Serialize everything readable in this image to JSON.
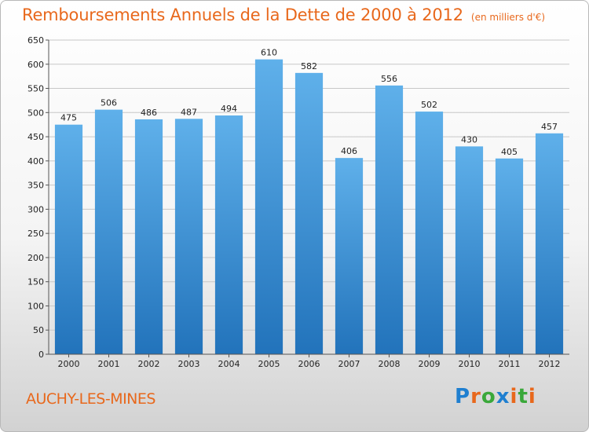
{
  "header": {
    "title": "Remboursements Annuels de la Dette de 2000 à 2012",
    "subtitle": "(en milliers d'€)"
  },
  "footer": {
    "commune": "AUCHY-LES-MINES",
    "logo_letters": [
      "P",
      "r",
      "o",
      "x",
      "i",
      "t",
      "i"
    ],
    "logo_colors": [
      "#1f7fd0",
      "#e8681c",
      "#3aa83a",
      "#1f7fd0",
      "#e8681c",
      "#3aa83a",
      "#e8681c"
    ]
  },
  "chart_data": {
    "type": "bar",
    "title": "Remboursements Annuels de la Dette de 2000 à 2012",
    "subtitle": "(en milliers d'€)",
    "xlabel": "",
    "ylabel": "",
    "categories": [
      "2000",
      "2001",
      "2002",
      "2003",
      "2004",
      "2005",
      "2006",
      "2007",
      "2008",
      "2009",
      "2010",
      "2011",
      "2012"
    ],
    "values": [
      475,
      506,
      486,
      487,
      494,
      610,
      582,
      406,
      556,
      502,
      430,
      405,
      457
    ],
    "ylim": [
      0,
      650
    ],
    "yticks": [
      0,
      50,
      100,
      150,
      200,
      250,
      300,
      350,
      400,
      450,
      500,
      550,
      600,
      650
    ],
    "grid": true,
    "legend": "none",
    "colors": {
      "bar_top": "#5fb0ea",
      "bar_bottom": "#2273bb",
      "grid": "#c8c8c8",
      "axis": "#555555"
    }
  }
}
